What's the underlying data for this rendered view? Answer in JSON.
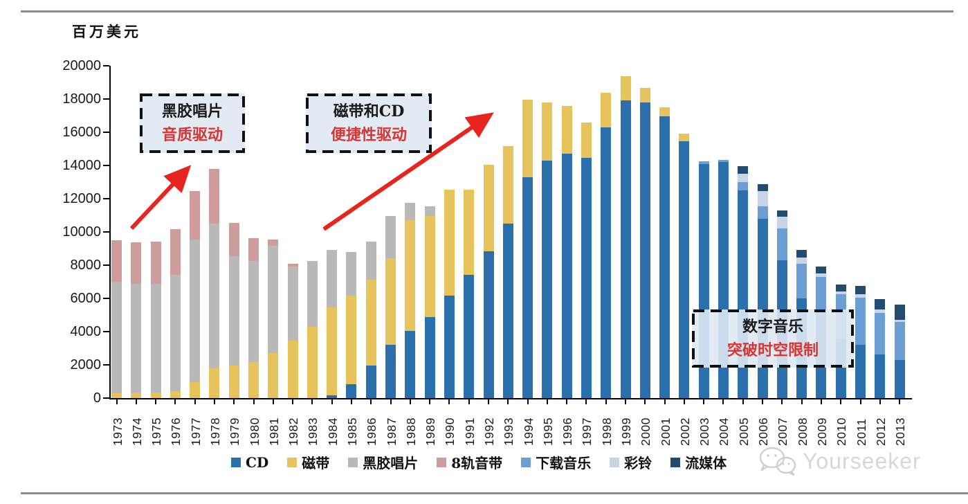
{
  "unit_label": "百万美元",
  "annotations": [
    {
      "title": "黑胶唱片",
      "subtitle": "音质驱动"
    },
    {
      "title": "磁带和CD",
      "subtitle": "便捷性驱动"
    },
    {
      "title": "数字音乐",
      "subtitle": "突破时空限制"
    }
  ],
  "watermark": {
    "text": "Yourseeker",
    "icon": "wechat-icon"
  },
  "colors": {
    "cd": "#2c6fad",
    "cassette": "#e7c35b",
    "vinyl": "#b9b9b9",
    "eight_track": "#cf9c9c",
    "download": "#6b9fd4",
    "ringtone": "#c9d4e6",
    "streaming": "#214c6f",
    "arrow_red": "#e8241f",
    "annotation_red": "#d9342f",
    "rule_gray": "#8a8a8a"
  },
  "chart_data": {
    "type": "bar",
    "stacked": true,
    "title": "",
    "ylabel": "百万美元",
    "xlabel": "",
    "grid": false,
    "legend_position": "bottom",
    "ylim": [
      0,
      20000
    ],
    "ytick_step": 2000,
    "categories": [
      1973,
      1974,
      1975,
      1976,
      1977,
      1978,
      1979,
      1980,
      1981,
      1982,
      1983,
      1984,
      1985,
      1986,
      1987,
      1988,
      1989,
      1990,
      1991,
      1992,
      1993,
      1994,
      1995,
      1996,
      1997,
      1998,
      1999,
      2000,
      2001,
      2002,
      2003,
      2004,
      2005,
      2006,
      2007,
      2008,
      2009,
      2010,
      2011,
      2012,
      2013
    ],
    "series": [
      {
        "name": "CD",
        "color": "#2c6fad",
        "values": [
          0,
          0,
          0,
          0,
          0,
          0,
          0,
          0,
          0,
          0,
          0,
          150,
          830,
          1960,
          3200,
          4030,
          4870,
          6160,
          7400,
          8820,
          10480,
          13310,
          14300,
          14690,
          14440,
          16310,
          17930,
          17800,
          16970,
          15470,
          14100,
          14200,
          12500,
          10800,
          8300,
          6000,
          5300,
          3550,
          3200,
          2620,
          2290
        ]
      },
      {
        "name": "磁带",
        "color": "#e7c35b",
        "values": [
          300,
          330,
          330,
          420,
          960,
          1790,
          1960,
          2160,
          2700,
          3450,
          4280,
          5300,
          5330,
          5160,
          5200,
          6660,
          6080,
          6400,
          5160,
          5240,
          4700,
          4650,
          3500,
          2900,
          2160,
          2080,
          1460,
          880,
          540,
          460,
          0,
          0,
          0,
          0,
          0,
          0,
          0,
          0,
          0,
          0,
          0
        ]
      },
      {
        "name": "黑胶唱片",
        "color": "#b9b9b9",
        "values": [
          6700,
          6550,
          6550,
          7000,
          8600,
          8700,
          6580,
          6100,
          6450,
          4450,
          3950,
          3450,
          2620,
          2290,
          2540,
          1040,
          580,
          0,
          0,
          0,
          0,
          0,
          0,
          0,
          0,
          0,
          0,
          0,
          0,
          0,
          0,
          0,
          0,
          0,
          0,
          0,
          0,
          0,
          0,
          0,
          0
        ]
      },
      {
        "name": "8轨音带",
        "color": "#cf9c9c",
        "values": [
          2500,
          2500,
          2520,
          2730,
          2900,
          3310,
          2020,
          1380,
          400,
          200,
          0,
          0,
          0,
          0,
          0,
          0,
          0,
          0,
          0,
          0,
          0,
          0,
          0,
          0,
          0,
          0,
          0,
          0,
          0,
          0,
          0,
          0,
          0,
          0,
          0,
          0,
          0,
          0,
          0,
          0,
          0
        ]
      },
      {
        "name": "下载音乐",
        "color": "#6b9fd4",
        "values": [
          0,
          0,
          0,
          0,
          0,
          0,
          0,
          0,
          0,
          0,
          0,
          0,
          0,
          0,
          0,
          0,
          0,
          0,
          0,
          0,
          0,
          0,
          0,
          0,
          0,
          0,
          0,
          0,
          0,
          0,
          130,
          150,
          520,
          760,
          1900,
          2100,
          2000,
          2700,
          2830,
          2500,
          2300
        ]
      },
      {
        "name": "彩铃",
        "color": "#c9d4e6",
        "values": [
          0,
          0,
          0,
          0,
          0,
          0,
          0,
          0,
          0,
          0,
          0,
          0,
          0,
          0,
          0,
          0,
          0,
          0,
          0,
          0,
          0,
          0,
          0,
          0,
          0,
          0,
          0,
          0,
          0,
          0,
          0,
          0,
          500,
          900,
          700,
          350,
          180,
          150,
          200,
          200,
          100
        ]
      },
      {
        "name": "流媒体",
        "color": "#214c6f",
        "values": [
          0,
          0,
          0,
          0,
          0,
          0,
          0,
          0,
          0,
          0,
          0,
          0,
          0,
          0,
          0,
          0,
          0,
          0,
          0,
          0,
          0,
          0,
          0,
          0,
          0,
          0,
          0,
          0,
          0,
          0,
          0,
          0,
          420,
          420,
          410,
          450,
          420,
          420,
          500,
          630,
          920
        ]
      }
    ]
  }
}
